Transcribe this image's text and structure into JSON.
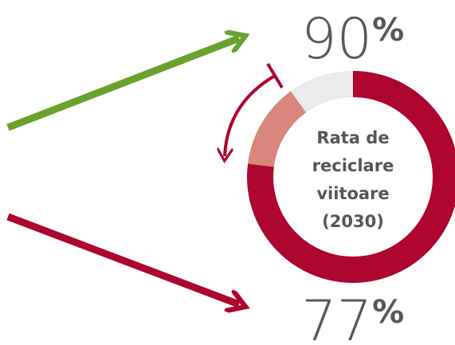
{
  "chart_data": {
    "type": "donut",
    "values": [
      77,
      13,
      10
    ],
    "colors": [
      "#ad052e",
      "#d8857b",
      "#ebebee"
    ],
    "center_label": [
      "Rata de",
      "reciclare",
      "viitoare",
      "(2030)"
    ],
    "annotations": [
      {
        "value": 90,
        "suffix": "%"
      },
      {
        "value": 77,
        "suffix": "%"
      }
    ]
  }
}
